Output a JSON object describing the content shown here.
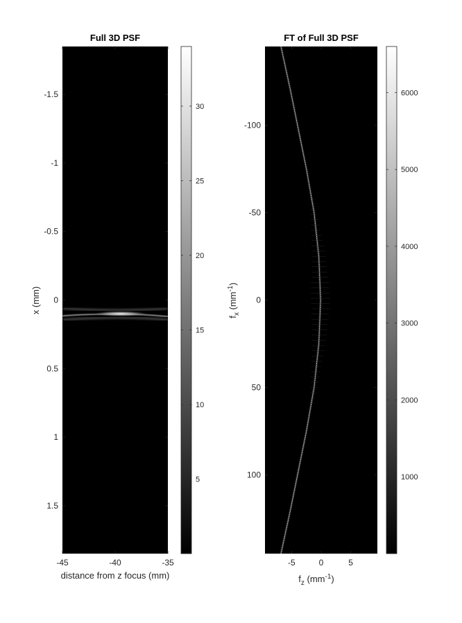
{
  "chart_data": [
    {
      "type": "heatmap",
      "title": "Full 3D PSF",
      "xlabel": "distance from z focus (mm)",
      "ylabel": "x (mm)",
      "xlim": [
        -45,
        -35
      ],
      "ylim": [
        -1.85,
        1.85
      ],
      "y_reversed": true,
      "x_ticks": [
        -45,
        -40,
        -35
      ],
      "y_ticks": [
        -1.5,
        -1,
        -0.5,
        0,
        0.5,
        1,
        1.5
      ],
      "colormap": "gray",
      "background_color": "#000000",
      "colorbar": {
        "range": [
          0,
          34
        ],
        "ticks": [
          5,
          10,
          15,
          20,
          25,
          30
        ]
      },
      "feature": {
        "description_type": "bright-band",
        "center_z": -39.5,
        "center_x": 0.1,
        "peak_value": 34
      }
    },
    {
      "type": "heatmap",
      "title": "FT of Full 3D PSF",
      "xlabel": "f_z (mm^-1)",
      "xlabel_base": "f",
      "xlabel_sub": "z",
      "xlabel_unit_open": " (mm",
      "xlabel_unit_sup": "-1",
      "xlabel_unit_close": ")",
      "ylabel": "f_x (mm^-1)",
      "ylabel_base": "f",
      "ylabel_sub": "x",
      "ylabel_unit_open": " (mm",
      "ylabel_unit_sup": "-1",
      "ylabel_unit_close": ")",
      "xlim": [
        -9.5,
        9.5
      ],
      "ylim": [
        -145,
        145
      ],
      "y_reversed": true,
      "x_ticks": [
        -5,
        0,
        5
      ],
      "y_ticks": [
        -100,
        -50,
        0,
        50,
        100
      ],
      "colormap": "gray",
      "background_color": "#000000",
      "colorbar": {
        "range": [
          0,
          6600
        ],
        "ticks": [
          1000,
          2000,
          3000,
          4000,
          5000,
          6000
        ]
      },
      "curve": {
        "fx": [
          -145,
          -120,
          -100,
          -75,
          -50,
          -25,
          0,
          25,
          50,
          75,
          100,
          120,
          145
        ],
        "fz": [
          -6.8,
          -5.2,
          -4.0,
          -2.5,
          -1.2,
          -0.4,
          -0.1,
          -0.4,
          -1.2,
          -2.5,
          -4.0,
          -5.2,
          -6.8
        ]
      }
    }
  ]
}
